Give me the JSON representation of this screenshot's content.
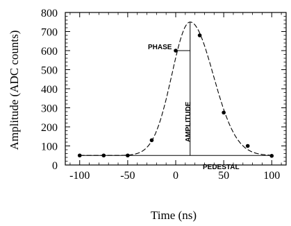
{
  "chart_data": {
    "type": "scatter",
    "xlabel": "Time (ns)",
    "ylabel": "Amplitude (ADC counts)",
    "xlim": [
      -115,
      115
    ],
    "ylim": [
      0,
      800
    ],
    "x_ticks": [
      -100,
      -50,
      0,
      50,
      100
    ],
    "y_ticks": [
      0,
      100,
      200,
      300,
      400,
      500,
      600,
      700,
      800
    ],
    "grid": false,
    "series": [
      {
        "values": [
          {
            "x": -100,
            "y": 50
          },
          {
            "x": -75,
            "y": 50
          },
          {
            "x": -50,
            "y": 50
          },
          {
            "x": -25,
            "y": 130
          },
          {
            "x": 0,
            "y": 600
          },
          {
            "x": 25,
            "y": 680
          },
          {
            "x": 50,
            "y": 275
          },
          {
            "x": 75,
            "y": 100
          },
          {
            "x": 100,
            "y": 48
          }
        ]
      }
    ],
    "fit_curve": {
      "style": "dashed",
      "pedestal": 50,
      "peak_time": 15,
      "peak_value": 750
    },
    "annotations": {
      "phase": "PHASE",
      "amplitude": "AMPLITUDE",
      "pedestal": "PEDESTAL"
    }
  }
}
